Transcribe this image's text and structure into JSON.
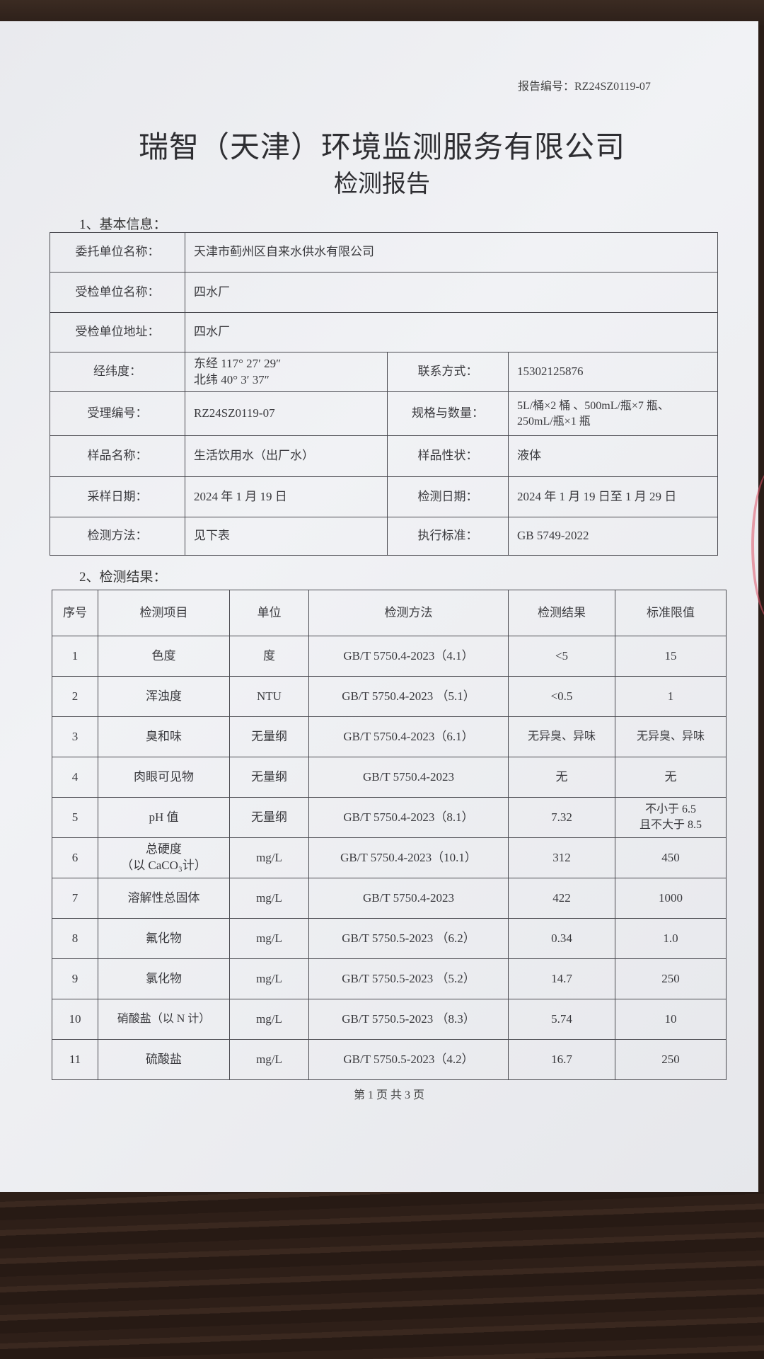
{
  "header": {
    "report_number": "报告编号：RZ24SZ0119-07",
    "company": "瑞智（天津）环境监测服务有限公司",
    "doc_title": "检测报告"
  },
  "basic_info": {
    "section_title": "1、基本信息：",
    "client_label": "委托单位名称：",
    "client": "天津市蓟州区自来水供水有限公司",
    "inspected_label": "受检单位名称：",
    "inspected": "四水厂",
    "address_label": "受检单位地址：",
    "address": "四水厂",
    "coords_label": "经纬度：",
    "longitude": "东经 117° 27′ 29″",
    "latitude": "北纬 40° 3′ 37″",
    "contact_label": "联系方式：",
    "contact": "15302125876",
    "accept_no_label": "受理编号：",
    "accept_no": "RZ24SZ0119-07",
    "spec_label": "规格与数量：",
    "spec_line1": "5L/桶×2 桶 、500mL/瓶×7 瓶、",
    "spec_line2": "250mL/瓶×1 瓶",
    "sample_name_label": "样品名称：",
    "sample_name": "生活饮用水（出厂水）",
    "sample_state_label": "样品性状：",
    "sample_state": "液体",
    "sampling_date_label": "采样日期：",
    "sampling_date": "2024 年 1 月 19 日",
    "test_date_label": "检测日期：",
    "test_date": "2024 年 1 月 19 日至 1 月 29 日",
    "method_label": "检测方法：",
    "method": "见下表",
    "standard_label": "执行标准：",
    "standard": "GB 5749-2022"
  },
  "results": {
    "section_title": "2、检测结果：",
    "columns": [
      "序号",
      "检测项目",
      "单位",
      "检测方法",
      "检测结果",
      "标准限值"
    ],
    "rows": [
      {
        "no": "1",
        "item": "色度",
        "item2": "",
        "unit": "度",
        "method": "GB/T 5750.4-2023（4.1）",
        "result": "<5",
        "limit": "15",
        "limit2": ""
      },
      {
        "no": "2",
        "item": "浑浊度",
        "item2": "",
        "unit": "NTU",
        "method": "GB/T 5750.4-2023 （5.1）",
        "result": "<0.5",
        "limit": "1",
        "limit2": ""
      },
      {
        "no": "3",
        "item": "臭和味",
        "item2": "",
        "unit": "无量纲",
        "method": "GB/T 5750.4-2023（6.1）",
        "result": "无异臭、异味",
        "limit": "无异臭、异味",
        "limit2": ""
      },
      {
        "no": "4",
        "item": "肉眼可见物",
        "item2": "",
        "unit": "无量纲",
        "method": "GB/T 5750.4-2023",
        "result": "无",
        "limit": "无",
        "limit2": ""
      },
      {
        "no": "5",
        "item": "pH 值",
        "item2": "",
        "unit": "无量纲",
        "method": "GB/T 5750.4-2023（8.1）",
        "result": "7.32",
        "limit": "不小于 6.5",
        "limit2": "且不大于 8.5"
      },
      {
        "no": "6",
        "item": "总硬度",
        "item2": "（以 CaCO₃计）",
        "unit": "mg/L",
        "method": "GB/T 5750.4-2023（10.1）",
        "result": "312",
        "limit": "450",
        "limit2": ""
      },
      {
        "no": "7",
        "item": "溶解性总固体",
        "item2": "",
        "unit": "mg/L",
        "method": "GB/T 5750.4-2023",
        "result": "422",
        "limit": "1000",
        "limit2": ""
      },
      {
        "no": "8",
        "item": "氟化物",
        "item2": "",
        "unit": "mg/L",
        "method": "GB/T 5750.5-2023 （6.2）",
        "result": "0.34",
        "limit": "1.0",
        "limit2": ""
      },
      {
        "no": "9",
        "item": "氯化物",
        "item2": "",
        "unit": "mg/L",
        "method": "GB/T 5750.5-2023 （5.2）",
        "result": "14.7",
        "limit": "250",
        "limit2": ""
      },
      {
        "no": "10",
        "item": "硝酸盐（以 N 计）",
        "item2": "",
        "unit": "mg/L",
        "method": "GB/T 5750.5-2023 （8.3）",
        "result": "5.74",
        "limit": "10",
        "limit2": ""
      },
      {
        "no": "11",
        "item": "硫酸盐",
        "item2": "",
        "unit": "mg/L",
        "method": "GB/T 5750.5-2023（4.2）",
        "result": "16.7",
        "limit": "250",
        "limit2": ""
      }
    ]
  },
  "footer": {
    "page": "第 1 页 共 3 页"
  },
  "colors": {
    "paper": "#eeeff3",
    "ink": "#3a3a3e",
    "stamp": "#e0556a"
  }
}
